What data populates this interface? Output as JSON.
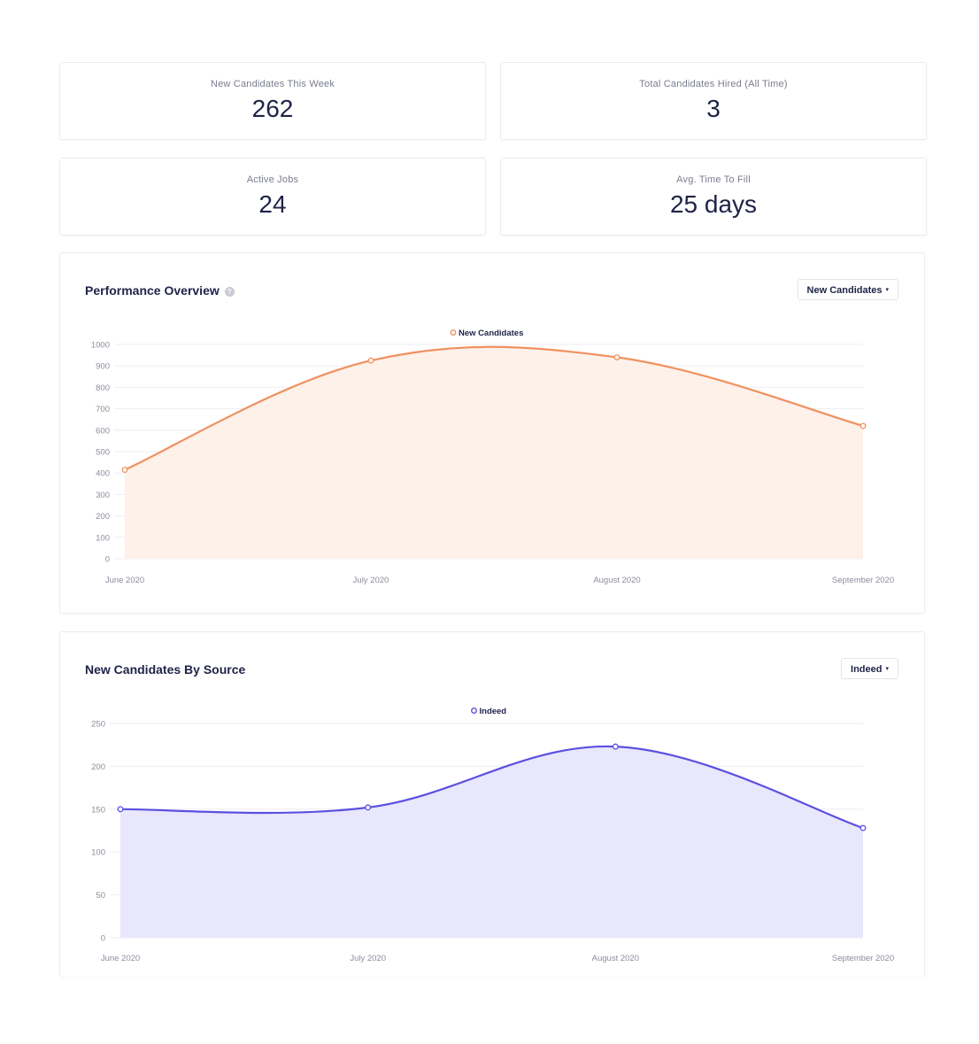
{
  "stats": [
    {
      "label": "New Candidates This Week",
      "value": "262"
    },
    {
      "label": "Total Candidates Hired (All Time)",
      "value": "3"
    },
    {
      "label": "Active Jobs",
      "value": "24"
    },
    {
      "label": "Avg. Time To Fill",
      "value": "25 days"
    }
  ],
  "performance": {
    "title": "Performance Overview",
    "help_icon": "?",
    "dropdown_label": "New Candidates",
    "dropdown_caret": "▾"
  },
  "source": {
    "title": "New Candidates By Source",
    "dropdown_label": "Indeed",
    "dropdown_caret": "▾"
  },
  "colors": {
    "perf_line": "#f0915e",
    "perf_fill": "#fdf1ea",
    "source_line": "#5b50e0",
    "source_fill": "#e8e7fb"
  },
  "chart_data": [
    {
      "type": "area",
      "categories": [
        "June 2020",
        "July 2020",
        "August 2020",
        "September 2020"
      ],
      "series": [
        {
          "name": "New Candidates",
          "values": [
            415,
            925,
            940,
            620
          ]
        }
      ],
      "ylim": [
        0,
        1000
      ],
      "yticks": [
        0,
        100,
        200,
        300,
        400,
        500,
        600,
        700,
        800,
        900,
        1000
      ],
      "grid": true,
      "legend": "top-center"
    },
    {
      "type": "area",
      "categories": [
        "June 2020",
        "July 2020",
        "August 2020",
        "September 2020"
      ],
      "series": [
        {
          "name": "Indeed",
          "values": [
            150,
            152,
            223,
            128
          ]
        }
      ],
      "ylim": [
        0,
        250
      ],
      "yticks": [
        0,
        50,
        100,
        150,
        200,
        250
      ],
      "grid": true,
      "legend": "top-center"
    }
  ]
}
